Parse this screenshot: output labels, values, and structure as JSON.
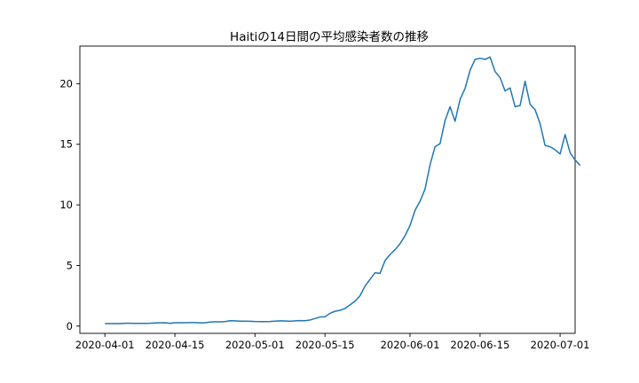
{
  "chart_data": {
    "type": "line",
    "title": "Haitiの14日間の平均感染者数の推移",
    "xlabel": "",
    "ylabel": "",
    "x_start": "2020-04-01",
    "x_tick_labels": [
      "2020-04-01",
      "2020-04-15",
      "2020-05-01",
      "2020-05-15",
      "2020-06-01",
      "2020-06-15",
      "2020-07-01"
    ],
    "y_ticks": [
      0,
      5,
      10,
      15,
      20
    ],
    "xlim": [
      "2020-03-27",
      "2020-07-04"
    ],
    "ylim": [
      -0.6,
      23.1
    ],
    "grid": false,
    "series": [
      {
        "color": "#1f77b4",
        "points": [
          [
            "2020-04-01",
            0.2
          ],
          [
            "2020-04-02",
            0.2
          ],
          [
            "2020-04-03",
            0.2
          ],
          [
            "2020-04-04",
            0.2
          ],
          [
            "2020-04-05",
            0.23
          ],
          [
            "2020-04-06",
            0.23
          ],
          [
            "2020-04-07",
            0.22
          ],
          [
            "2020-04-08",
            0.22
          ],
          [
            "2020-04-09",
            0.22
          ],
          [
            "2020-04-10",
            0.23
          ],
          [
            "2020-04-11",
            0.26
          ],
          [
            "2020-04-12",
            0.27
          ],
          [
            "2020-04-13",
            0.28
          ],
          [
            "2020-04-14",
            0.22
          ],
          [
            "2020-04-15",
            0.28
          ],
          [
            "2020-04-16",
            0.28
          ],
          [
            "2020-04-17",
            0.28
          ],
          [
            "2020-04-18",
            0.29
          ],
          [
            "2020-04-19",
            0.29
          ],
          [
            "2020-04-20",
            0.27
          ],
          [
            "2020-04-21",
            0.27
          ],
          [
            "2020-04-22",
            0.33
          ],
          [
            "2020-04-23",
            0.35
          ],
          [
            "2020-04-24",
            0.35
          ],
          [
            "2020-04-25",
            0.37
          ],
          [
            "2020-04-26",
            0.44
          ],
          [
            "2020-04-27",
            0.43
          ],
          [
            "2020-04-28",
            0.41
          ],
          [
            "2020-04-29",
            0.41
          ],
          [
            "2020-04-30",
            0.4
          ],
          [
            "2020-05-01",
            0.38
          ],
          [
            "2020-05-02",
            0.37
          ],
          [
            "2020-05-03",
            0.37
          ],
          [
            "2020-05-04",
            0.38
          ],
          [
            "2020-05-05",
            0.41
          ],
          [
            "2020-05-06",
            0.43
          ],
          [
            "2020-05-07",
            0.42
          ],
          [
            "2020-05-08",
            0.4
          ],
          [
            "2020-05-09",
            0.43
          ],
          [
            "2020-05-10",
            0.45
          ],
          [
            "2020-05-11",
            0.44
          ],
          [
            "2020-05-12",
            0.5
          ],
          [
            "2020-05-13",
            0.62
          ],
          [
            "2020-05-14",
            0.75
          ],
          [
            "2020-05-15",
            0.76
          ],
          [
            "2020-05-16",
            1.05
          ],
          [
            "2020-05-17",
            1.22
          ],
          [
            "2020-05-18",
            1.3
          ],
          [
            "2020-05-19",
            1.45
          ],
          [
            "2020-05-20",
            1.75
          ],
          [
            "2020-05-21",
            2.05
          ],
          [
            "2020-05-22",
            2.5
          ],
          [
            "2020-05-23",
            3.3
          ],
          [
            "2020-05-24",
            3.85
          ],
          [
            "2020-05-25",
            4.4
          ],
          [
            "2020-05-26",
            4.35
          ],
          [
            "2020-05-27",
            5.4
          ],
          [
            "2020-05-28",
            5.9
          ],
          [
            "2020-05-29",
            6.3
          ],
          [
            "2020-05-30",
            6.8
          ],
          [
            "2020-05-31",
            7.45
          ],
          [
            "2020-06-01",
            8.3
          ],
          [
            "2020-06-02",
            9.55
          ],
          [
            "2020-06-03",
            10.3
          ],
          [
            "2020-06-04",
            11.3
          ],
          [
            "2020-06-05",
            13.3
          ],
          [
            "2020-06-06",
            14.8
          ],
          [
            "2020-06-07",
            15.05
          ],
          [
            "2020-06-08",
            16.95
          ],
          [
            "2020-06-09",
            18.1
          ],
          [
            "2020-06-10",
            16.9
          ],
          [
            "2020-06-11",
            18.7
          ],
          [
            "2020-06-12",
            19.6
          ],
          [
            "2020-06-13",
            21.1
          ],
          [
            "2020-06-14",
            22.0
          ],
          [
            "2020-06-15",
            22.1
          ],
          [
            "2020-06-16",
            22.0
          ],
          [
            "2020-06-17",
            22.2
          ],
          [
            "2020-06-18",
            21.0
          ],
          [
            "2020-06-19",
            20.5
          ],
          [
            "2020-06-20",
            19.4
          ],
          [
            "2020-06-21",
            19.65
          ],
          [
            "2020-06-22",
            18.1
          ],
          [
            "2020-06-23",
            18.2
          ],
          [
            "2020-06-24",
            20.2
          ],
          [
            "2020-06-25",
            18.3
          ],
          [
            "2020-06-26",
            17.85
          ],
          [
            "2020-06-27",
            16.7
          ],
          [
            "2020-06-28",
            14.9
          ],
          [
            "2020-06-29",
            14.8
          ],
          [
            "2020-06-30",
            14.55
          ],
          [
            "2020-07-01",
            14.2
          ],
          [
            "2020-07-02",
            15.8
          ],
          [
            "2020-07-03",
            14.3
          ],
          [
            "2020-07-04",
            13.7
          ],
          [
            "2020-07-05",
            13.25
          ]
        ]
      }
    ]
  }
}
